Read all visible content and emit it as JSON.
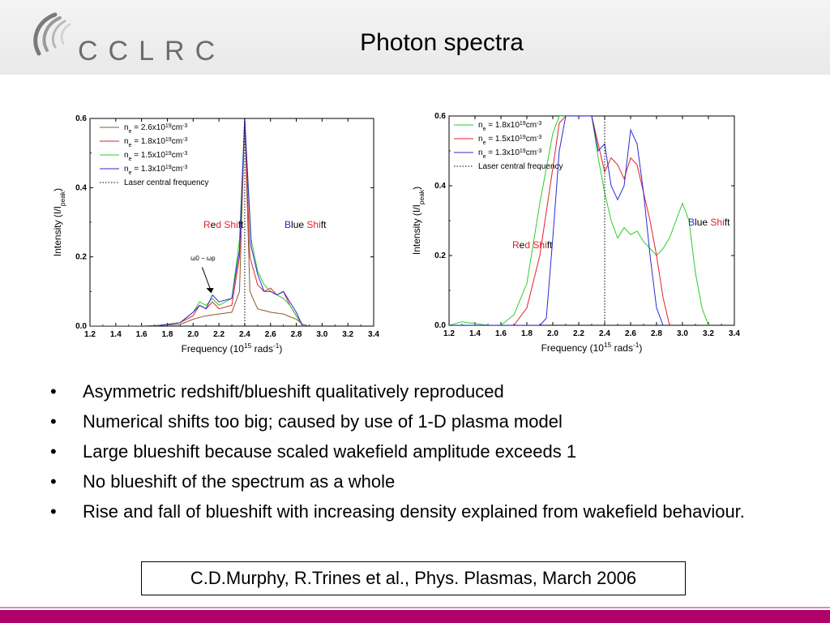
{
  "header": {
    "logo_text": "CCLRC",
    "title": "Photon spectra"
  },
  "colors": {
    "red": "#e6202a",
    "green": "#2ecc2e",
    "blue": "#2a2ad6",
    "brown": "#8b5a2b",
    "brand": "#b0006a"
  },
  "chart_data": [
    {
      "type": "line",
      "title": "",
      "xlabel": "Frequency (10^15 rads^-1)",
      "ylabel": "Intensity (I/I_peak)",
      "xlim": [
        1.2,
        3.4
      ],
      "ylim": [
        0.0,
        0.6
      ],
      "x_ticks": [
        "1.2",
        "1.4",
        "1.6",
        "1.8",
        "2.0",
        "2.2",
        "2.4",
        "2.6",
        "2.8",
        "3.0",
        "3.2",
        "3.4"
      ],
      "y_ticks": [
        "0.0",
        "0.2",
        "0.4",
        "0.6"
      ],
      "legend_placement": "top-left",
      "legend": [
        {
          "label": "n_e = 2.6x10^19cm^-3",
          "color": "brown"
        },
        {
          "label": "n_e = 1.8x10^19cm^-3",
          "color": "red"
        },
        {
          "label": "n_e = 1.5x10^19cm^-3",
          "color": "green"
        },
        {
          "label": "n_e = 1.3x10^19cm^-3",
          "color": "blue"
        },
        {
          "label": "Laser central frequency",
          "color": "dotted"
        }
      ],
      "annotations": {
        "red_shift": "Red Shift",
        "blue_shift": "Blue Shift",
        "omega_label": "ω0 − ωp"
      },
      "vline_x": 2.4,
      "series": [
        {
          "color": "brown",
          "x": [
            1.2,
            1.6,
            1.9,
            2.0,
            2.1,
            2.2,
            2.3,
            2.36,
            2.4,
            2.44,
            2.5,
            2.6,
            2.7,
            2.8,
            2.85,
            2.9
          ],
          "y": [
            0,
            0,
            0.005,
            0.02,
            0.03,
            0.035,
            0.04,
            0.1,
            0.6,
            0.1,
            0.05,
            0.04,
            0.035,
            0.02,
            0.005,
            0
          ]
        },
        {
          "color": "red",
          "x": [
            1.2,
            1.7,
            1.9,
            2.0,
            2.05,
            2.1,
            2.15,
            2.2,
            2.3,
            2.36,
            2.4,
            2.44,
            2.5,
            2.55,
            2.6,
            2.65,
            2.7,
            2.75,
            2.8,
            2.85
          ],
          "y": [
            0,
            0,
            0.01,
            0.03,
            0.06,
            0.05,
            0.07,
            0.05,
            0.06,
            0.2,
            0.6,
            0.2,
            0.12,
            0.1,
            0.11,
            0.09,
            0.1,
            0.06,
            0.03,
            0
          ]
        },
        {
          "color": "green",
          "x": [
            1.2,
            1.7,
            1.9,
            2.0,
            2.05,
            2.1,
            2.15,
            2.2,
            2.3,
            2.36,
            2.4,
            2.45,
            2.5,
            2.55,
            2.6,
            2.65,
            2.7,
            2.75,
            2.8,
            2.85
          ],
          "y": [
            0,
            0,
            0.01,
            0.04,
            0.07,
            0.06,
            0.08,
            0.06,
            0.08,
            0.25,
            0.6,
            0.25,
            0.16,
            0.12,
            0.1,
            0.09,
            0.08,
            0.06,
            0.03,
            0
          ]
        },
        {
          "color": "blue",
          "x": [
            1.2,
            1.7,
            1.9,
            2.0,
            2.05,
            2.1,
            2.15,
            2.2,
            2.3,
            2.36,
            2.4,
            2.45,
            2.5,
            2.55,
            2.6,
            2.65,
            2.7,
            2.75,
            2.8,
            2.85
          ],
          "y": [
            0,
            0,
            0.01,
            0.04,
            0.06,
            0.05,
            0.09,
            0.07,
            0.08,
            0.22,
            0.6,
            0.23,
            0.15,
            0.1,
            0.1,
            0.09,
            0.1,
            0.07,
            0.04,
            0
          ]
        }
      ]
    },
    {
      "type": "line",
      "title": "",
      "xlabel": "Frequency (10^15 rads^-1)",
      "ylabel": "Intensity (I/I_peak)",
      "xlim": [
        1.2,
        3.4
      ],
      "ylim": [
        0.0,
        0.6
      ],
      "x_ticks": [
        "1.2",
        "1.4",
        "1.6",
        "1.8",
        "2.0",
        "2.2",
        "2.4",
        "2.6",
        "2.8",
        "3.0",
        "3.2",
        "3.4"
      ],
      "y_ticks": [
        "0.0",
        "0.2",
        "0.4",
        "0.6"
      ],
      "legend_placement": "top-left",
      "legend": [
        {
          "label": "n_e = 1.8x10^19cm^-3",
          "color": "green"
        },
        {
          "label": "n_e = 1.5x10^19cm^-3",
          "color": "red"
        },
        {
          "label": "n_e = 1.3x10^19cm^-3",
          "color": "blue"
        },
        {
          "label": "Laser central frequency",
          "color": "dotted"
        }
      ],
      "annotations": {
        "red_shift": "Red Shift",
        "blue_shift": "Blue Shift"
      },
      "vline_x": 2.4,
      "series": [
        {
          "color": "green",
          "x": [
            1.2,
            1.3,
            1.5,
            1.6,
            1.7,
            1.8,
            1.9,
            2.0,
            2.05,
            2.1,
            2.2,
            2.3,
            2.35,
            2.4,
            2.45,
            2.5,
            2.55,
            2.6,
            2.65,
            2.7,
            2.75,
            2.8,
            2.85,
            2.9,
            2.95,
            3.0,
            3.05,
            3.1,
            3.15,
            3.2
          ],
          "y": [
            0,
            0.01,
            0,
            0,
            0.03,
            0.12,
            0.35,
            0.55,
            0.6,
            0.6,
            0.6,
            0.6,
            0.48,
            0.38,
            0.3,
            0.25,
            0.28,
            0.26,
            0.27,
            0.24,
            0.22,
            0.2,
            0.22,
            0.25,
            0.3,
            0.35,
            0.3,
            0.15,
            0.05,
            0
          ]
        },
        {
          "color": "red",
          "x": [
            1.2,
            1.7,
            1.8,
            1.9,
            2.0,
            2.05,
            2.1,
            2.2,
            2.3,
            2.35,
            2.4,
            2.45,
            2.5,
            2.55,
            2.6,
            2.65,
            2.7,
            2.75,
            2.8,
            2.85,
            2.9
          ],
          "y": [
            0,
            0,
            0.05,
            0.2,
            0.45,
            0.58,
            0.6,
            0.6,
            0.6,
            0.52,
            0.44,
            0.48,
            0.46,
            0.42,
            0.48,
            0.46,
            0.38,
            0.3,
            0.2,
            0.08,
            0
          ]
        },
        {
          "color": "blue",
          "x": [
            1.2,
            1.9,
            1.95,
            2.0,
            2.05,
            2.1,
            2.2,
            2.3,
            2.35,
            2.4,
            2.45,
            2.5,
            2.55,
            2.6,
            2.65,
            2.7,
            2.75,
            2.8,
            2.85
          ],
          "y": [
            0,
            0,
            0.02,
            0.25,
            0.5,
            0.6,
            0.6,
            0.6,
            0.5,
            0.52,
            0.4,
            0.36,
            0.4,
            0.56,
            0.52,
            0.38,
            0.2,
            0.05,
            0
          ]
        }
      ]
    }
  ],
  "bullets": [
    "Asymmetric redshift/blueshift qualitatively reproduced",
    "Numerical shifts too big; caused by use of 1-D plasma model",
    "Large blueshift because scaled wakefield amplitude exceeds 1",
    "No blueshift of the spectrum as a whole",
    "Rise and fall of blueshift with increasing density explained from wakefield behaviour."
  ],
  "bullet_symbol": "•",
  "citation": "C.D.Murphy, R.Trines et al.,  Phys. Plasmas, March 2006"
}
